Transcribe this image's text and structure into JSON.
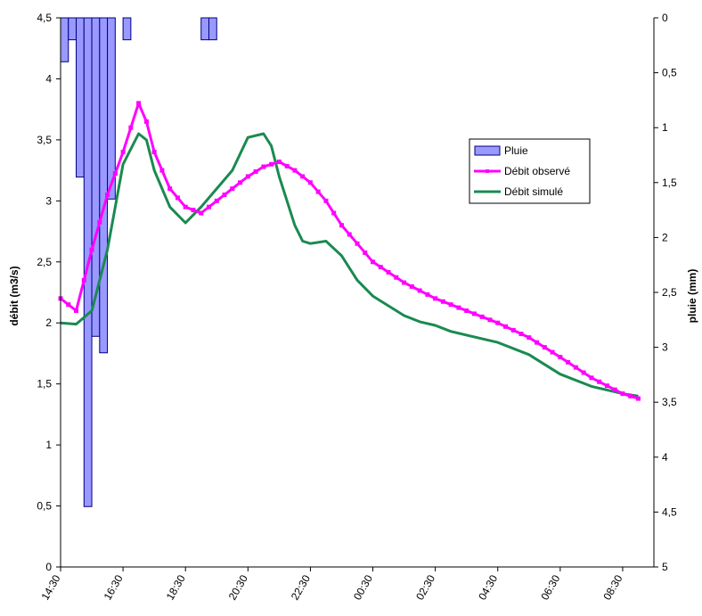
{
  "chart_data": {
    "type": "line",
    "title": "",
    "ylabel_left": "débit (m3/s)",
    "ylabel_right": "pluie (mm)",
    "ylim_left": [
      0,
      4.5
    ],
    "ylim_right": [
      0,
      5
    ],
    "right_axis_reversed": true,
    "yticks_left": [
      "0",
      "0,5",
      "1",
      "1,5",
      "2",
      "2,5",
      "3",
      "3,5",
      "4",
      "4,5"
    ],
    "yticks_right": [
      "0",
      "0,5",
      "1",
      "1,5",
      "2",
      "2,5",
      "3",
      "3,5",
      "4",
      "4,5",
      "5"
    ],
    "xticks": [
      "14:30",
      "16:30",
      "18:30",
      "20:30",
      "22:30",
      "00:30",
      "02:30",
      "04:30",
      "06:30",
      "08:30"
    ],
    "x_unit": "hours from 14:30",
    "legend": [
      "Pluie",
      "Débit observé",
      "Débit simulé"
    ],
    "legend_position": "right",
    "grid": false,
    "colors": {
      "pluie_fill": "#9999ff",
      "pluie_stroke": "#000080",
      "observe": "#ff00ff",
      "simule": "#1a8a50"
    },
    "series": [
      {
        "name": "Pluie",
        "kind": "bar",
        "axis": "right",
        "x": [
          0.0,
          0.25,
          0.5,
          0.75,
          1.0,
          1.25,
          1.5,
          2.0,
          4.5,
          4.75
        ],
        "values": [
          0.4,
          0.2,
          1.45,
          4.45,
          2.9,
          3.05,
          1.65,
          0.2,
          0.2,
          0.2
        ]
      },
      {
        "name": "Débit observé",
        "kind": "line",
        "axis": "left",
        "x": [
          0,
          0.5,
          1.0,
          1.5,
          2.0,
          2.5,
          2.75,
          3.0,
          3.5,
          4.0,
          4.5,
          5.0,
          5.5,
          6.0,
          6.5,
          7.0,
          7.5,
          8.0,
          8.5,
          9.0,
          9.5,
          10.0,
          11.0,
          12.0,
          13.0,
          14.0,
          15.0,
          16.0,
          17.0,
          18.0,
          18.5
        ],
        "values": [
          2.2,
          2.1,
          2.6,
          3.05,
          3.4,
          3.8,
          3.65,
          3.4,
          3.1,
          2.95,
          2.9,
          3.0,
          3.1,
          3.2,
          3.28,
          3.32,
          3.25,
          3.15,
          3.0,
          2.8,
          2.65,
          2.5,
          2.33,
          2.2,
          2.1,
          2.0,
          1.88,
          1.72,
          1.55,
          1.42,
          1.38
        ]
      },
      {
        "name": "Débit simulé",
        "kind": "line",
        "axis": "left",
        "x": [
          0,
          0.5,
          1.0,
          1.5,
          2.0,
          2.5,
          2.75,
          3.0,
          3.5,
          4.0,
          4.5,
          5.0,
          5.5,
          6.0,
          6.5,
          6.75,
          7.0,
          7.5,
          7.75,
          8.0,
          8.5,
          9.0,
          9.5,
          10.0,
          11.0,
          11.5,
          12.0,
          12.5,
          13.0,
          14.0,
          15.0,
          15.5,
          16.0,
          17.0,
          18.0,
          18.5
        ],
        "values": [
          2.0,
          1.99,
          2.1,
          2.6,
          3.3,
          3.55,
          3.5,
          3.25,
          2.95,
          2.82,
          2.95,
          3.1,
          3.25,
          3.52,
          3.55,
          3.45,
          3.2,
          2.8,
          2.67,
          2.65,
          2.67,
          2.55,
          2.35,
          2.22,
          2.06,
          2.01,
          1.98,
          1.93,
          1.9,
          1.84,
          1.74,
          1.66,
          1.58,
          1.48,
          1.42,
          1.4
        ]
      }
    ]
  }
}
